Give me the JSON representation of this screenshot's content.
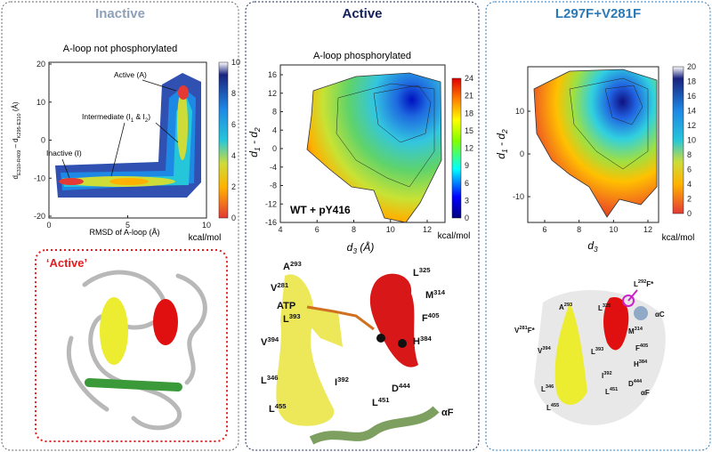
{
  "panels": [
    {
      "title": "Inactive",
      "subtitle": "A-loop not phosphorylated",
      "x_label": [
        "RMSD of A-loop (Å)"
      ],
      "y_label": [
        "d",
        "E310-R409",
        " – d",
        "K295-E310",
        " (Å)"
      ],
      "xticks": [
        0,
        5,
        10
      ],
      "yticks": [
        20,
        10,
        0,
        -10,
        -20
      ],
      "colorbar_ticks": [
        0,
        2,
        4,
        6,
        8,
        10
      ],
      "colorbar_unit": "kcal/mol",
      "annotations": [
        [
          "Active (A)"
        ],
        [
          "Intermediate (I",
          "1",
          " & I",
          "2",
          ")"
        ],
        [
          "Inactive (I)"
        ]
      ],
      "structure_label": "‘Active’"
    },
    {
      "title": "Active",
      "subtitle": "A-loop phosphorylated",
      "x_label": [
        "d",
        "3",
        " (Å)"
      ],
      "y_label": [
        "d",
        "1",
        " - d",
        "2"
      ],
      "xticks": [
        4,
        6,
        8,
        10,
        12
      ],
      "yticks": [
        16,
        12,
        8,
        4,
        0,
        -4,
        -8,
        -12,
        -16
      ],
      "colorbar_ticks": [
        0,
        3,
        6,
        9,
        12,
        15,
        18,
        21,
        24
      ],
      "colorbar_unit": "kcal/mol",
      "inset_label": "WT + pY416",
      "residues": [
        [
          "A",
          "293"
        ],
        [
          "V",
          "281"
        ],
        [
          "ATP"
        ],
        [
          "L",
          "393"
        ],
        [
          "V",
          "394"
        ],
        [
          "L",
          "346"
        ],
        [
          "L",
          "455"
        ],
        [
          "I",
          "392"
        ],
        [
          "L",
          "451"
        ],
        [
          "D",
          "444"
        ],
        [
          "αF"
        ],
        [
          "L",
          "325"
        ],
        [
          "M",
          "314"
        ],
        [
          "F",
          "405"
        ],
        [
          "H",
          "384"
        ]
      ]
    },
    {
      "title": "L297F+V281F",
      "x_label": [
        "d",
        "3"
      ],
      "y_label": [
        "d",
        "1",
        " - d",
        "2"
      ],
      "xticks": [
        6,
        8,
        10,
        12
      ],
      "yticks": [
        10,
        0,
        -10
      ],
      "colorbar_ticks": [
        0,
        2,
        4,
        6,
        8,
        10,
        12,
        14,
        16,
        18,
        20
      ],
      "colorbar_unit": "kcal/mol",
      "residues": [
        [
          "L",
          "292",
          "F*"
        ],
        [
          "αC"
        ],
        [
          "A",
          "293"
        ],
        [
          "L",
          "325"
        ],
        [
          "V",
          "281",
          "F*"
        ],
        [
          "M",
          "314"
        ],
        [
          "V",
          "394"
        ],
        [
          "F",
          "405"
        ],
        [
          "L",
          "393"
        ],
        [
          "H",
          "384"
        ],
        [
          "L",
          "346"
        ],
        [
          "I",
          "392"
        ],
        [
          "L",
          "455"
        ],
        [
          "L",
          "451"
        ],
        [
          "D",
          "444"
        ],
        [
          "αF"
        ]
      ]
    }
  ]
}
